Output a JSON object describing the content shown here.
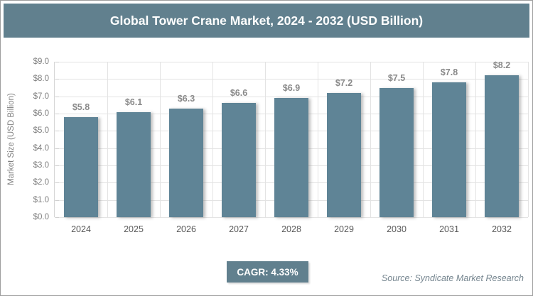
{
  "title": "Global Tower Crane Market, 2024 - 2032 (USD Billion)",
  "colors": {
    "header_bg": "#61808e",
    "bar": "#5f8496",
    "grid": "#e3e3e3",
    "axis_text": "#7f7f7f",
    "x_text": "#595959",
    "value_label": "#8a8a8a",
    "badge_bg": "#61808e",
    "source_text": "#75858f"
  },
  "chart_data": {
    "type": "bar",
    "title": "Global Tower Crane Market, 2024 - 2032 (USD Billion)",
    "categories": [
      "2024",
      "2025",
      "2026",
      "2027",
      "2028",
      "2029",
      "2030",
      "2031",
      "2032"
    ],
    "values": [
      5.8,
      6.1,
      6.3,
      6.6,
      6.9,
      7.2,
      7.5,
      7.8,
      8.2
    ],
    "value_labels": [
      "$5.8",
      "$6.1",
      "$6.3",
      "$6.6",
      "$6.9",
      "$7.2",
      "$7.5",
      "$7.8",
      "$8.2"
    ],
    "xlabel": "",
    "ylabel": "Market Size (USD Billion)",
    "ylim": [
      0,
      9
    ],
    "ytick_step": 1,
    "ytick_labels": [
      "$0.0",
      "$1.0",
      "$2.0",
      "$3.0",
      "$4.0",
      "$5.0",
      "$6.0",
      "$7.0",
      "$8.0",
      "$9.0"
    ],
    "grid": true,
    "legend": false
  },
  "footer": {
    "cagr_label": "CAGR: 4.33%",
    "source": "Source: Syndicate Market Research"
  }
}
